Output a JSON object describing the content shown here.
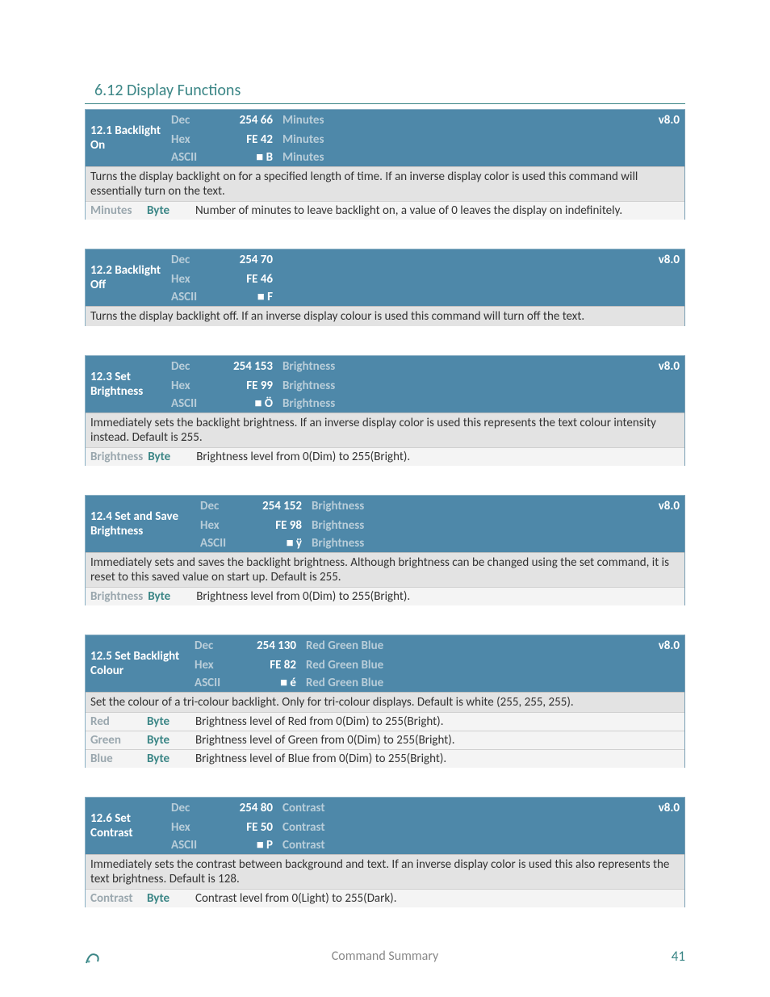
{
  "section": {
    "title": "6.12 Display Functions"
  },
  "commands": [
    {
      "title": "12.1 Backlight On",
      "titleClass": "title-cell",
      "version": "v8.0",
      "rows": [
        {
          "fmt": "Dec",
          "code": "254 66",
          "params": "Minutes"
        },
        {
          "fmt": "Hex",
          "code": "FE 42",
          "params": "Minutes"
        },
        {
          "fmt": "ASCII",
          "code": "■ B",
          "params": "Minutes"
        }
      ],
      "desc": "Turns the display backlight on for a specified length of time.  If an inverse display color is used this command will essentially turn on the text.",
      "params": [
        {
          "name": "Minutes",
          "type": "Byte",
          "desc": "Number of minutes to leave backlight on, a value of 0 leaves the display on indefinitely."
        }
      ]
    },
    {
      "title": "12.2 Backlight Off",
      "titleClass": "title-cell",
      "version": "v8.0",
      "rows": [
        {
          "fmt": "Dec",
          "code": "254 70",
          "params": ""
        },
        {
          "fmt": "Hex",
          "code": "FE 46",
          "params": ""
        },
        {
          "fmt": "ASCII",
          "code": "■ F",
          "params": ""
        }
      ],
      "desc": "Turns the display backlight off.  If an inverse display colour is used this command will turn off the text.",
      "params": []
    },
    {
      "title": "12.3 Set Brightness",
      "titleClass": "title-cell",
      "version": "v8.0",
      "rows": [
        {
          "fmt": "Dec",
          "code": "254 153",
          "params": "Brightness"
        },
        {
          "fmt": "Hex",
          "code": "FE 99",
          "params": "Brightness"
        },
        {
          "fmt": "ASCII",
          "code": "■ Ö",
          "params": "Brightness"
        }
      ],
      "desc": "Immediately sets the backlight brightness.  If an inverse display color is used this represents the text colour intensity instead.  Default is 255.",
      "params": [
        {
          "name": "Brightness",
          "type": "Byte",
          "desc": "Brightness level from 0(Dim) to 255(Bright)."
        }
      ]
    },
    {
      "title": "12.4 Set and Save Brightness",
      "titleClass": "title-cell wide",
      "version": "v8.0",
      "rows": [
        {
          "fmt": "Dec",
          "code": "254 152",
          "params": "Brightness"
        },
        {
          "fmt": "Hex",
          "code": "FE 98",
          "params": "Brightness"
        },
        {
          "fmt": "ASCII",
          "code": "■ ÿ",
          "params": "Brightness"
        }
      ],
      "desc": "Immediately sets and saves the backlight brightness.  Although brightness can be changed using the set command, it is reset to this saved value on start up.  Default is 255.",
      "params": [
        {
          "name": "Brightness",
          "type": "Byte",
          "desc": "Brightness level from 0(Dim) to 255(Bright)."
        }
      ]
    },
    {
      "title": "12.5 Set Backlight Colour",
      "titleClass": "title-cell wider",
      "version": "v8.0",
      "rows": [
        {
          "fmt": "Dec",
          "code": "254 130",
          "params": "Red  Green  Blue"
        },
        {
          "fmt": "Hex",
          "code": "FE 82",
          "params": "Red  Green  Blue"
        },
        {
          "fmt": "ASCII",
          "code": "■ é",
          "params": "Red  Green  Blue"
        }
      ],
      "desc": "Set the colour of a tri-colour backlight.  Only for tri-colour displays.  Default is white (255, 255, 255).",
      "params": [
        {
          "name": "Red",
          "type": "Byte",
          "desc": "Brightness level of Red from 0(Dim) to 255(Bright)."
        },
        {
          "name": "Green",
          "type": "Byte",
          "desc": "Brightness level of Green from 0(Dim) to 255(Bright)."
        },
        {
          "name": "Blue",
          "type": "Byte",
          "desc": "Brightness level of Blue from 0(Dim) to 255(Bright)."
        }
      ]
    },
    {
      "title": "12.6 Set Contrast",
      "titleClass": "title-cell",
      "version": "v8.0",
      "rows": [
        {
          "fmt": "Dec",
          "code": "254 80",
          "params": "Contrast"
        },
        {
          "fmt": "Hex",
          "code": "FE 50",
          "params": "Contrast"
        },
        {
          "fmt": "ASCII",
          "code": "■ P",
          "params": "Contrast"
        }
      ],
      "desc": "Immediately sets the contrast between background and text.  If an inverse display color is used this also represents the text brightness.  Default is 128.",
      "params": [
        {
          "name": "Contrast",
          "type": "Byte",
          "desc": "Contrast level from 0(Light) to 255(Dark)."
        }
      ]
    }
  ],
  "footer": {
    "center": "Command Summary",
    "page": "41"
  }
}
